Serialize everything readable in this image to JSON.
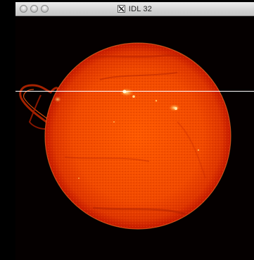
{
  "window": {
    "title": "IDL 32",
    "app_icon": "x11-icon"
  },
  "titlebar_buttons": {
    "close": "close-button",
    "minimize": "minimize-button",
    "zoom": "zoom-button"
  },
  "image": {
    "subject": "solar-disk",
    "colors": {
      "background": "#050000",
      "disk_core": "#ff5200",
      "disk_limb": "#c51800",
      "bright_region": "#ffe79a",
      "cursor_line": "#ffffff"
    }
  }
}
